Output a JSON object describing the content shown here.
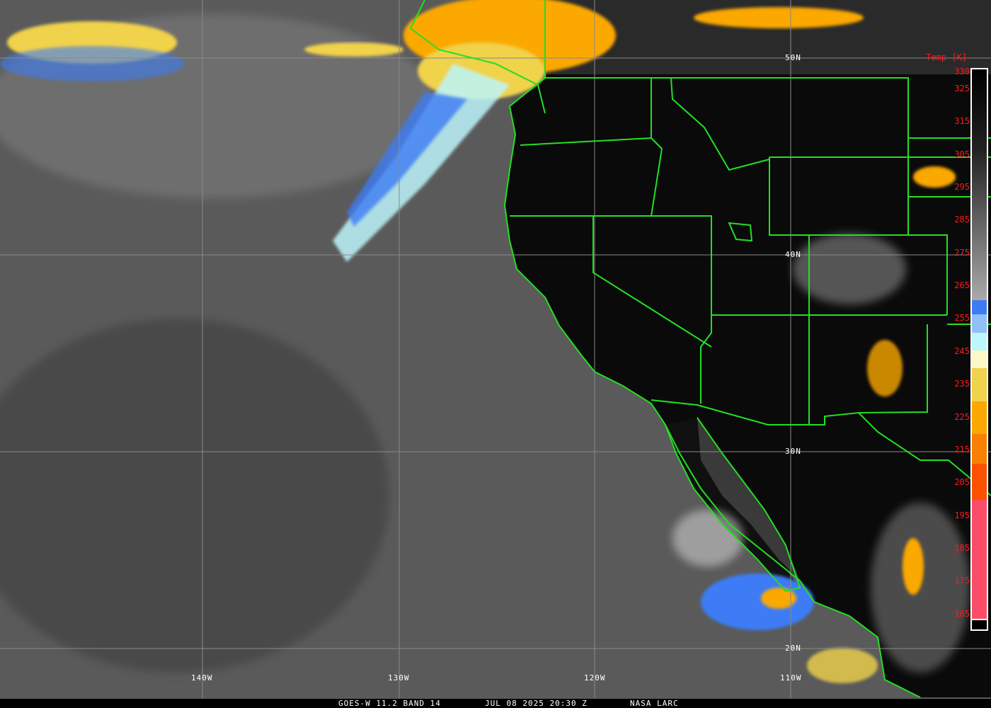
{
  "image": {
    "satellite_label": "GOES-W 11.2 BAND 14",
    "datetime": "JUL 08 2025 20:30 Z",
    "credit": "NASA LARC",
    "longitude_labels": [
      "140W",
      "130W",
      "120W",
      "110W"
    ],
    "latitude_labels": [
      "50N",
      "40N",
      "30N",
      "20N"
    ],
    "colorbar": {
      "title": "Temp [K]",
      "ticks": [
        "330",
        "325",
        "315",
        "305",
        "295",
        "285",
        "275",
        "265",
        "255",
        "245",
        "235",
        "225",
        "215",
        "205",
        "195",
        "185",
        "175",
        "165"
      ],
      "colors": {
        "blue": "#3d7cf5",
        "light_blue": "#8fc0f7",
        "pale_cyan": "#bdf6fb",
        "pale_yellow": "#fbf7c6",
        "yellow": "#f1d24c",
        "orange": "#fba800",
        "dark_orange": "#fb7f00",
        "red_orange": "#fb5000",
        "pink_red": "#fb4d68"
      }
    },
    "border_color": "#22e022"
  }
}
